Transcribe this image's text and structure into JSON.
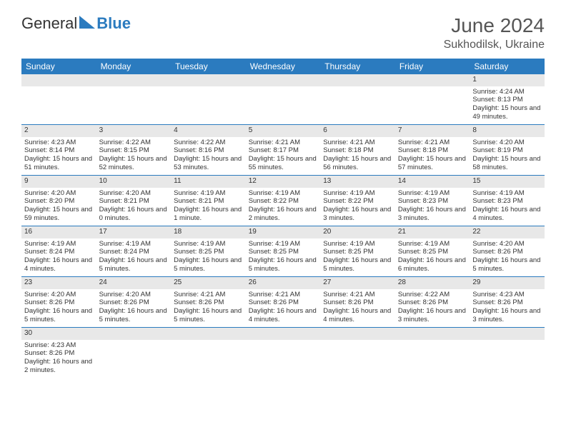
{
  "logo": {
    "text_a": "General",
    "text_b": "Blue",
    "color_a": "#333333",
    "color_b": "#2b7bbf"
  },
  "title": "June 2024",
  "location": "Sukhodilsk, Ukraine",
  "header_bg": "#2b7bbf",
  "header_text": "#ffffff",
  "daynum_bg": "#e8e8e8",
  "border_color": "#2b7bbf",
  "day_names": [
    "Sunday",
    "Monday",
    "Tuesday",
    "Wednesday",
    "Thursday",
    "Friday",
    "Saturday"
  ],
  "weeks": [
    [
      null,
      null,
      null,
      null,
      null,
      null,
      {
        "n": "1",
        "sr": "Sunrise: 4:24 AM",
        "ss": "Sunset: 8:13 PM",
        "dl": "Daylight: 15 hours and 49 minutes."
      }
    ],
    [
      {
        "n": "2",
        "sr": "Sunrise: 4:23 AM",
        "ss": "Sunset: 8:14 PM",
        "dl": "Daylight: 15 hours and 51 minutes."
      },
      {
        "n": "3",
        "sr": "Sunrise: 4:22 AM",
        "ss": "Sunset: 8:15 PM",
        "dl": "Daylight: 15 hours and 52 minutes."
      },
      {
        "n": "4",
        "sr": "Sunrise: 4:22 AM",
        "ss": "Sunset: 8:16 PM",
        "dl": "Daylight: 15 hours and 53 minutes."
      },
      {
        "n": "5",
        "sr": "Sunrise: 4:21 AM",
        "ss": "Sunset: 8:17 PM",
        "dl": "Daylight: 15 hours and 55 minutes."
      },
      {
        "n": "6",
        "sr": "Sunrise: 4:21 AM",
        "ss": "Sunset: 8:18 PM",
        "dl": "Daylight: 15 hours and 56 minutes."
      },
      {
        "n": "7",
        "sr": "Sunrise: 4:21 AM",
        "ss": "Sunset: 8:18 PM",
        "dl": "Daylight: 15 hours and 57 minutes."
      },
      {
        "n": "8",
        "sr": "Sunrise: 4:20 AM",
        "ss": "Sunset: 8:19 PM",
        "dl": "Daylight: 15 hours and 58 minutes."
      }
    ],
    [
      {
        "n": "9",
        "sr": "Sunrise: 4:20 AM",
        "ss": "Sunset: 8:20 PM",
        "dl": "Daylight: 15 hours and 59 minutes."
      },
      {
        "n": "10",
        "sr": "Sunrise: 4:20 AM",
        "ss": "Sunset: 8:21 PM",
        "dl": "Daylight: 16 hours and 0 minutes."
      },
      {
        "n": "11",
        "sr": "Sunrise: 4:19 AM",
        "ss": "Sunset: 8:21 PM",
        "dl": "Daylight: 16 hours and 1 minute."
      },
      {
        "n": "12",
        "sr": "Sunrise: 4:19 AM",
        "ss": "Sunset: 8:22 PM",
        "dl": "Daylight: 16 hours and 2 minutes."
      },
      {
        "n": "13",
        "sr": "Sunrise: 4:19 AM",
        "ss": "Sunset: 8:22 PM",
        "dl": "Daylight: 16 hours and 3 minutes."
      },
      {
        "n": "14",
        "sr": "Sunrise: 4:19 AM",
        "ss": "Sunset: 8:23 PM",
        "dl": "Daylight: 16 hours and 3 minutes."
      },
      {
        "n": "15",
        "sr": "Sunrise: 4:19 AM",
        "ss": "Sunset: 8:23 PM",
        "dl": "Daylight: 16 hours and 4 minutes."
      }
    ],
    [
      {
        "n": "16",
        "sr": "Sunrise: 4:19 AM",
        "ss": "Sunset: 8:24 PM",
        "dl": "Daylight: 16 hours and 4 minutes."
      },
      {
        "n": "17",
        "sr": "Sunrise: 4:19 AM",
        "ss": "Sunset: 8:24 PM",
        "dl": "Daylight: 16 hours and 5 minutes."
      },
      {
        "n": "18",
        "sr": "Sunrise: 4:19 AM",
        "ss": "Sunset: 8:25 PM",
        "dl": "Daylight: 16 hours and 5 minutes."
      },
      {
        "n": "19",
        "sr": "Sunrise: 4:19 AM",
        "ss": "Sunset: 8:25 PM",
        "dl": "Daylight: 16 hours and 5 minutes."
      },
      {
        "n": "20",
        "sr": "Sunrise: 4:19 AM",
        "ss": "Sunset: 8:25 PM",
        "dl": "Daylight: 16 hours and 5 minutes."
      },
      {
        "n": "21",
        "sr": "Sunrise: 4:19 AM",
        "ss": "Sunset: 8:25 PM",
        "dl": "Daylight: 16 hours and 6 minutes."
      },
      {
        "n": "22",
        "sr": "Sunrise: 4:20 AM",
        "ss": "Sunset: 8:26 PM",
        "dl": "Daylight: 16 hours and 5 minutes."
      }
    ],
    [
      {
        "n": "23",
        "sr": "Sunrise: 4:20 AM",
        "ss": "Sunset: 8:26 PM",
        "dl": "Daylight: 16 hours and 5 minutes."
      },
      {
        "n": "24",
        "sr": "Sunrise: 4:20 AM",
        "ss": "Sunset: 8:26 PM",
        "dl": "Daylight: 16 hours and 5 minutes."
      },
      {
        "n": "25",
        "sr": "Sunrise: 4:21 AM",
        "ss": "Sunset: 8:26 PM",
        "dl": "Daylight: 16 hours and 5 minutes."
      },
      {
        "n": "26",
        "sr": "Sunrise: 4:21 AM",
        "ss": "Sunset: 8:26 PM",
        "dl": "Daylight: 16 hours and 4 minutes."
      },
      {
        "n": "27",
        "sr": "Sunrise: 4:21 AM",
        "ss": "Sunset: 8:26 PM",
        "dl": "Daylight: 16 hours and 4 minutes."
      },
      {
        "n": "28",
        "sr": "Sunrise: 4:22 AM",
        "ss": "Sunset: 8:26 PM",
        "dl": "Daylight: 16 hours and 3 minutes."
      },
      {
        "n": "29",
        "sr": "Sunrise: 4:23 AM",
        "ss": "Sunset: 8:26 PM",
        "dl": "Daylight: 16 hours and 3 minutes."
      }
    ],
    [
      {
        "n": "30",
        "sr": "Sunrise: 4:23 AM",
        "ss": "Sunset: 8:26 PM",
        "dl": "Daylight: 16 hours and 2 minutes."
      },
      null,
      null,
      null,
      null,
      null,
      null
    ]
  ]
}
